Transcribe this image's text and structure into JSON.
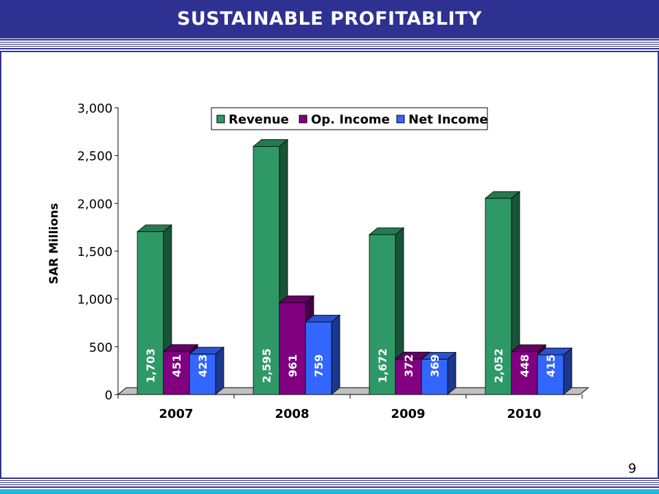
{
  "header": {
    "title": "SUSTAINABLE PROFITABLITY"
  },
  "footer": {
    "page_number": "9"
  },
  "colors": {
    "banner": "#2e3192",
    "revenue": "#2e9966",
    "op_income": "#800080",
    "net_income": "#3366ff",
    "accent_strip": "#2bb3e6"
  },
  "chart_data": {
    "type": "bar",
    "title": "",
    "xlabel": "",
    "ylabel": "SAR Millions",
    "categories": [
      "2007",
      "2008",
      "2009",
      "2010"
    ],
    "series": [
      {
        "name": "Revenue",
        "values": [
          1703,
          2595,
          1672,
          2052
        ],
        "labels": [
          "1,703",
          "2,595",
          "1,672",
          "2,052"
        ]
      },
      {
        "name": "Op. Income",
        "values": [
          451,
          961,
          372,
          448
        ],
        "labels": [
          "451",
          "961",
          "372",
          "448"
        ]
      },
      {
        "name": "Net Income",
        "values": [
          423,
          759,
          369,
          415
        ],
        "labels": [
          "423",
          "759",
          "369",
          "415"
        ]
      }
    ],
    "ylim": [
      0,
      3000
    ],
    "yticks": [
      "0",
      "500",
      "1,000",
      "1,500",
      "2,000",
      "2,500",
      "3,000"
    ],
    "grid": false,
    "legend_position": "top-right",
    "style": "3d-clustered-column"
  }
}
